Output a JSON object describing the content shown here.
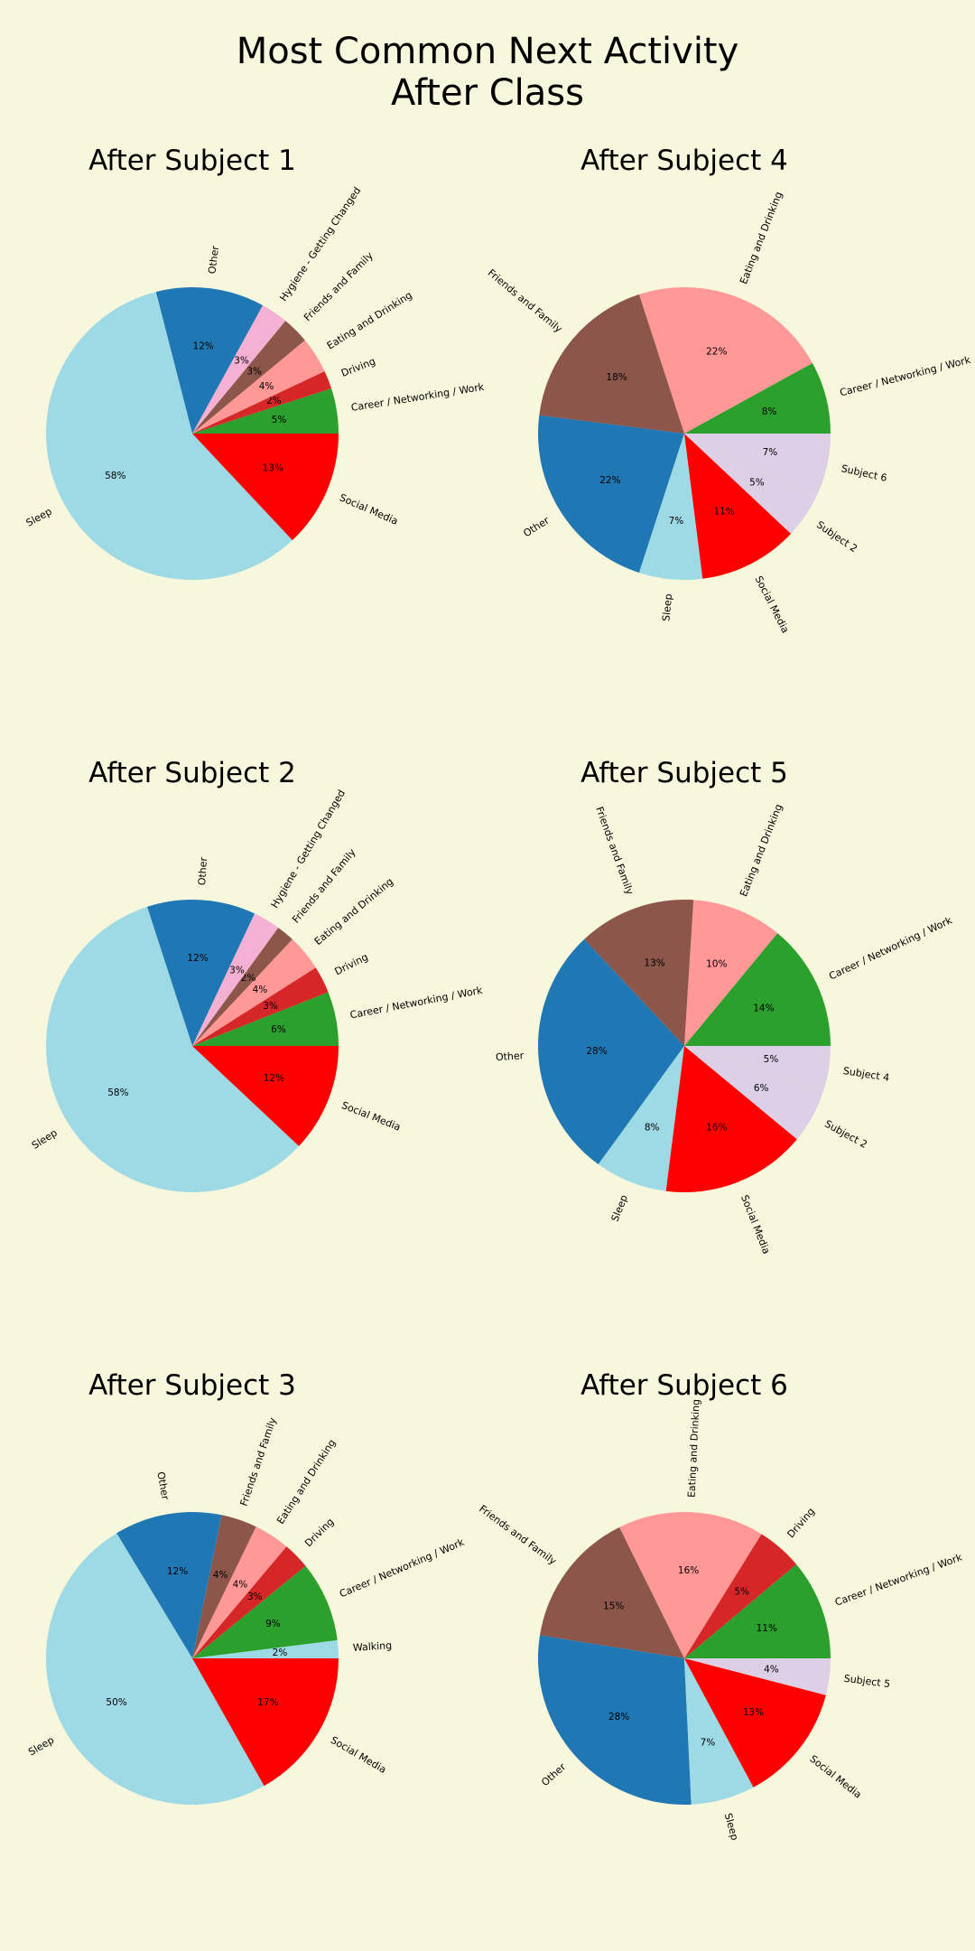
{
  "figure": {
    "title_line1": "Most Common Next Activity",
    "title_line2": "After Class",
    "background": "#f7f7dd"
  },
  "colors": {
    "Other": "#1f77b4",
    "Hygiene - Getting Changed": "#f5b1d3",
    "Friends and Family": "#8c564b",
    "Eating and Drinking": "#ff9896",
    "Driving": "#d62728",
    "Career / Networking / Work": "#2ca02c",
    "Social Media": "#ff0000",
    "Sleep": "#9edae5",
    "Walking": "#9edae5",
    "Subject 6": "#ddcfe6",
    "Subject 2": "#ddcfe6",
    "Subject 4": "#ddcfe6",
    "Subject 5": "#ddcfe6"
  },
  "chart_data": [
    {
      "type": "pie",
      "title": "After Subject 1",
      "slices": [
        {
          "label": "Career / Networking / Work",
          "value": 5,
          "pct": "5%"
        },
        {
          "label": "Driving",
          "value": 2,
          "pct": "2%"
        },
        {
          "label": "Eating and Drinking",
          "value": 4,
          "pct": "4%"
        },
        {
          "label": "Friends and Family",
          "value": 3,
          "pct": "3%"
        },
        {
          "label": "Hygiene - Getting Changed",
          "value": 3,
          "pct": "3%"
        },
        {
          "label": "Other",
          "value": 12,
          "pct": "12%"
        },
        {
          "label": "Sleep",
          "value": 58,
          "pct": "58%"
        },
        {
          "label": "Social Media",
          "value": 13,
          "pct": "13%"
        }
      ]
    },
    {
      "type": "pie",
      "title": "After Subject 4",
      "slices": [
        {
          "label": "Career / Networking / Work",
          "value": 8,
          "pct": "8%"
        },
        {
          "label": "Eating and Drinking",
          "value": 22,
          "pct": "22%"
        },
        {
          "label": "Friends and Family",
          "value": 18,
          "pct": "18%"
        },
        {
          "label": "Other",
          "value": 22,
          "pct": "22%"
        },
        {
          "label": "Sleep",
          "value": 7,
          "pct": "7%"
        },
        {
          "label": "Social Media",
          "value": 11,
          "pct": "11%"
        },
        {
          "label": "Subject 2",
          "value": 5,
          "pct": "5%"
        },
        {
          "label": "Subject 6",
          "value": 7,
          "pct": "7%"
        }
      ]
    },
    {
      "type": "pie",
      "title": "After Subject 2",
      "slices": [
        {
          "label": "Career / Networking / Work",
          "value": 6,
          "pct": "6%"
        },
        {
          "label": "Driving",
          "value": 3,
          "pct": "3%"
        },
        {
          "label": "Eating and Drinking",
          "value": 4,
          "pct": "4%"
        },
        {
          "label": "Friends and Family",
          "value": 2,
          "pct": "2%"
        },
        {
          "label": "Hygiene - Getting Changed",
          "value": 3,
          "pct": "3%"
        },
        {
          "label": "Other",
          "value": 12,
          "pct": "12%"
        },
        {
          "label": "Sleep",
          "value": 58,
          "pct": "58%"
        },
        {
          "label": "Social Media",
          "value": 12,
          "pct": "12%"
        }
      ]
    },
    {
      "type": "pie",
      "title": "After Subject 5",
      "slices": [
        {
          "label": "Career / Networking / Work",
          "value": 14,
          "pct": "14%"
        },
        {
          "label": "Eating and Drinking",
          "value": 10,
          "pct": "10%"
        },
        {
          "label": "Friends and Family",
          "value": 13,
          "pct": "13%"
        },
        {
          "label": "Other",
          "value": 28,
          "pct": "28%"
        },
        {
          "label": "Sleep",
          "value": 8,
          "pct": "8%"
        },
        {
          "label": "Social Media",
          "value": 16,
          "pct": "16%"
        },
        {
          "label": "Subject 2",
          "value": 6,
          "pct": "6%"
        },
        {
          "label": "Subject 4",
          "value": 5,
          "pct": "5%"
        }
      ]
    },
    {
      "type": "pie",
      "title": "After Subject 3",
      "slices": [
        {
          "label": "Walking",
          "value": 2,
          "pct": "2%"
        },
        {
          "label": "Career / Networking / Work",
          "value": 9,
          "pct": "9%"
        },
        {
          "label": "Driving",
          "value": 3,
          "pct": "3%"
        },
        {
          "label": "Eating and Drinking",
          "value": 4,
          "pct": "4%"
        },
        {
          "label": "Friends and Family",
          "value": 4,
          "pct": "4%"
        },
        {
          "label": "Other",
          "value": 12,
          "pct": "12%"
        },
        {
          "label": "Sleep",
          "value": 50,
          "pct": "50%"
        },
        {
          "label": "Social Media",
          "value": 17,
          "pct": "17%"
        }
      ]
    },
    {
      "type": "pie",
      "title": "After Subject 6",
      "slices": [
        {
          "label": "Career / Networking / Work",
          "value": 11,
          "pct": "11%"
        },
        {
          "label": "Driving",
          "value": 5,
          "pct": "5%"
        },
        {
          "label": "Eating and Drinking",
          "value": 16,
          "pct": "16%"
        },
        {
          "label": "Friends and Family",
          "value": 15,
          "pct": "15%"
        },
        {
          "label": "Other",
          "value": 28,
          "pct": "28%"
        },
        {
          "label": "Sleep",
          "value": 7,
          "pct": "7%"
        },
        {
          "label": "Social Media",
          "value": 13,
          "pct": "13%"
        },
        {
          "label": "Subject 5",
          "value": 4,
          "pct": "4%"
        }
      ]
    }
  ]
}
